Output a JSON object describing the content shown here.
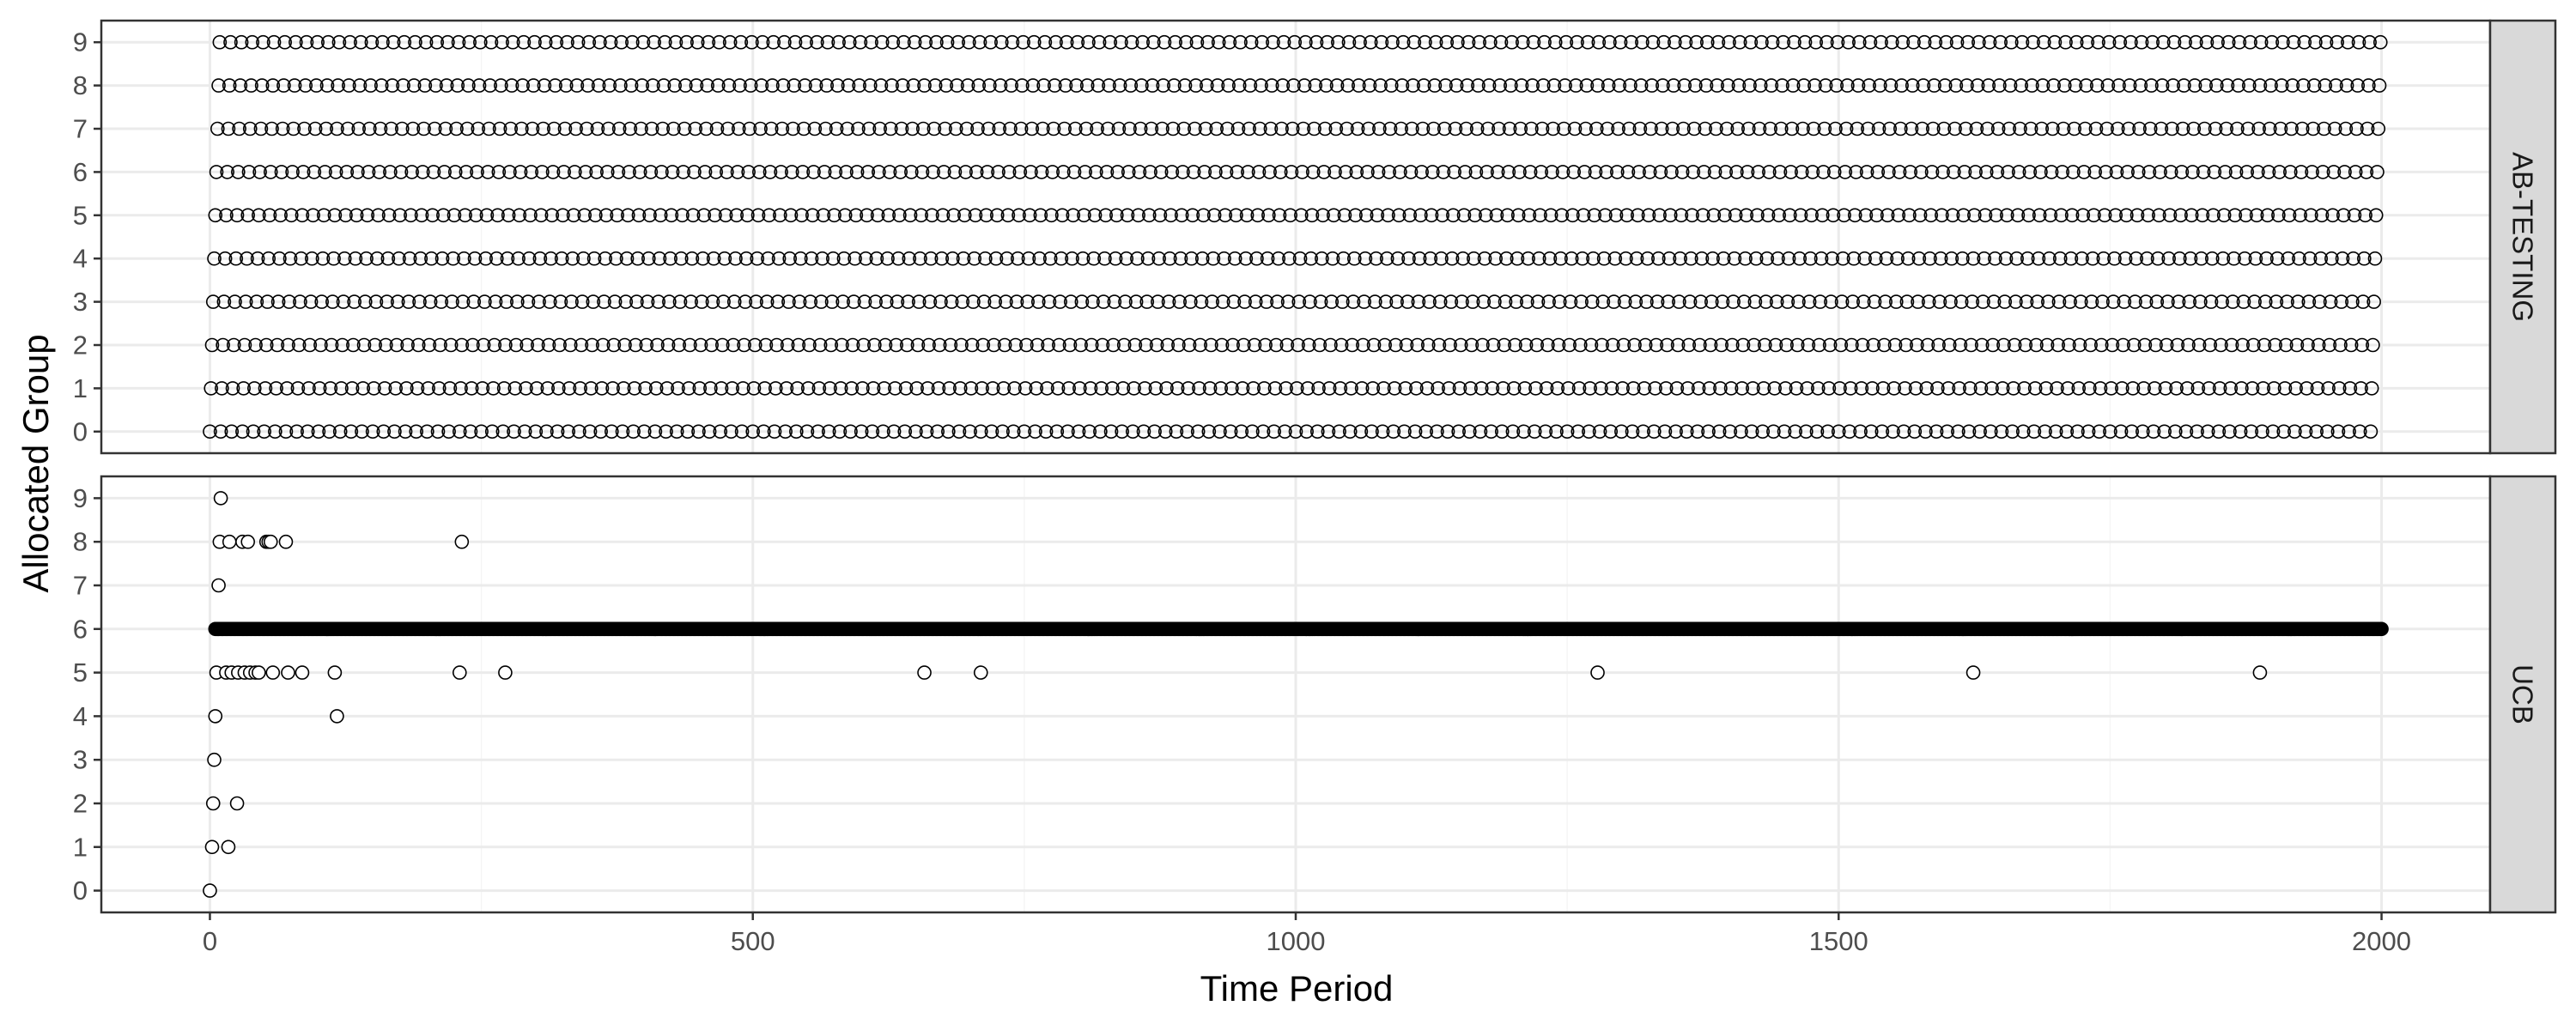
{
  "chart_data": {
    "type": "scatter",
    "xlabel": "Time Period",
    "ylabel": "Allocated Group",
    "xlim": [
      -100,
      2100
    ],
    "ylim": [
      -0.5,
      9.5
    ],
    "x_ticks": [
      0,
      500,
      1000,
      1500,
      2000
    ],
    "x_tick_labels": [
      "0",
      "500",
      "1000",
      "1500",
      "2000"
    ],
    "y_ticks": [
      0,
      1,
      2,
      3,
      4,
      5,
      6,
      7,
      8,
      9
    ],
    "y_tick_labels": [
      "0",
      "1",
      "2",
      "3",
      "4",
      "5",
      "6",
      "7",
      "8",
      "9"
    ],
    "grid": true,
    "point_style": "open-circle",
    "panels": [
      {
        "strip_label": "AB-TESTING",
        "description_rule": "round-robin allocation: group = (t mod 10) for t in 0..1999",
        "period": 10,
        "t_start": 0,
        "t_end": 1999
      },
      {
        "strip_label": "UCB",
        "background_group": 6,
        "background_from": 5,
        "background_to": 2000,
        "points": [
          [
            0,
            0
          ],
          [
            2,
            1
          ],
          [
            3,
            2
          ],
          [
            4,
            3
          ],
          [
            5,
            4
          ],
          [
            6,
            5
          ],
          [
            8,
            7
          ],
          [
            9,
            8
          ],
          [
            10,
            9
          ],
          [
            15,
            5
          ],
          [
            17,
            1
          ],
          [
            18,
            8
          ],
          [
            20,
            5
          ],
          [
            25,
            2
          ],
          [
            26,
            5
          ],
          [
            30,
            8
          ],
          [
            32,
            5
          ],
          [
            35,
            8
          ],
          [
            37,
            5
          ],
          [
            42,
            5
          ],
          [
            45,
            5
          ],
          [
            52,
            8
          ],
          [
            54,
            8
          ],
          [
            56,
            8
          ],
          [
            58,
            5
          ],
          [
            70,
            8
          ],
          [
            72,
            5
          ],
          [
            85,
            5
          ],
          [
            115,
            5
          ],
          [
            117,
            4
          ],
          [
            230,
            5
          ],
          [
            232,
            8
          ],
          [
            272,
            5
          ],
          [
            658,
            5
          ],
          [
            710,
            5
          ],
          [
            1278,
            5
          ],
          [
            1624,
            5
          ],
          [
            1888,
            5
          ]
        ]
      }
    ]
  },
  "colors": {
    "panel_border": "#333333",
    "grid_major": "#ebebeb",
    "grid_minor": "#f5f5f5",
    "strip_fill": "#d9d9d9",
    "point_stroke": "#000000"
  }
}
